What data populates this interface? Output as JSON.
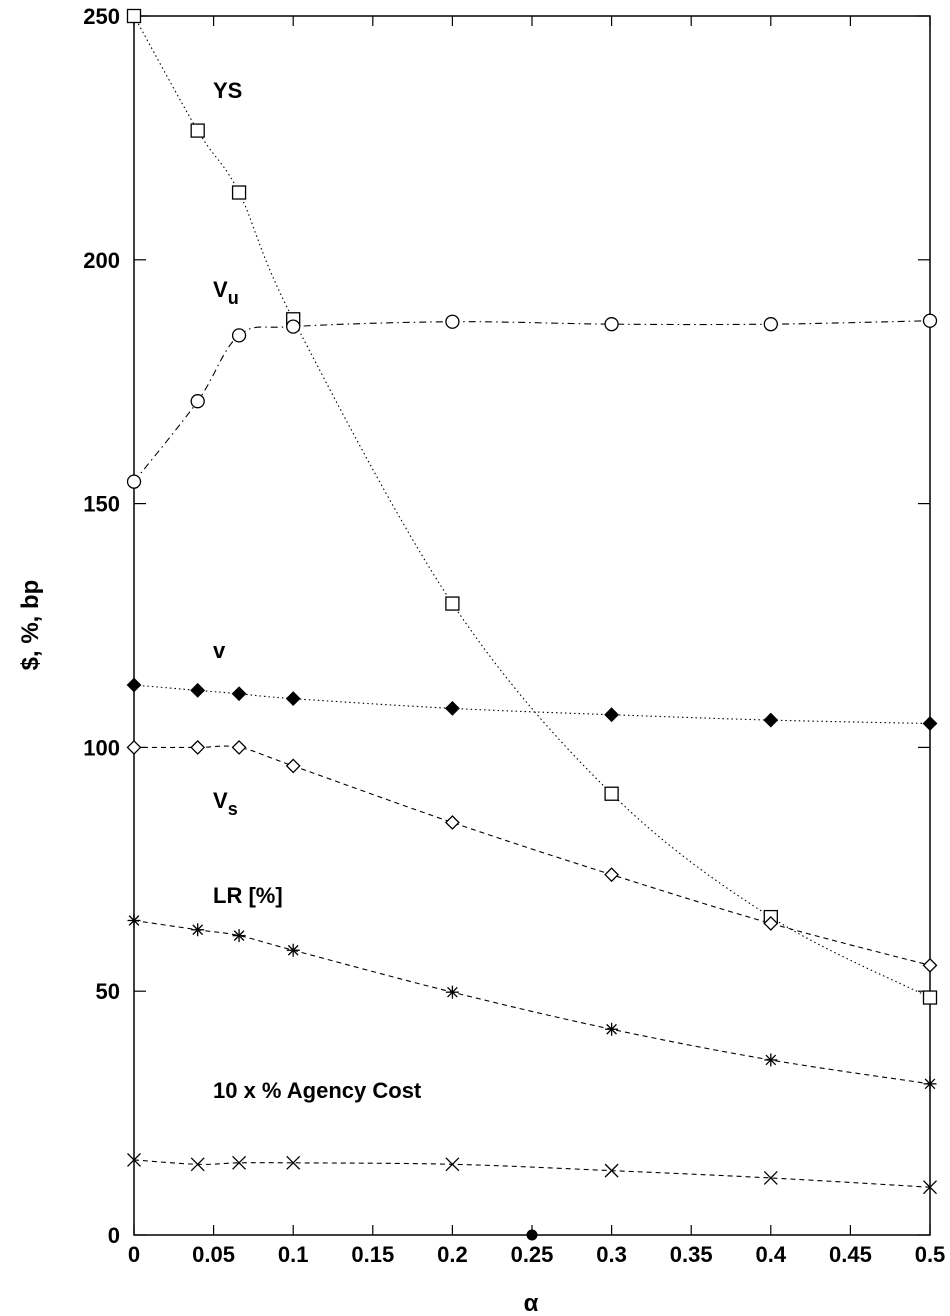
{
  "chart_data": {
    "type": "line",
    "title": "",
    "xlabel": "α",
    "ylabel": "$, %, bp",
    "xlim": [
      0,
      0.5
    ],
    "ylim": [
      0,
      250
    ],
    "x_ticks": [
      "0",
      "0.05",
      "0.1",
      "0.15",
      "0.2",
      "0.25",
      "0.3",
      "0.35",
      "0.4",
      "0.45",
      "0.5"
    ],
    "y_ticks": [
      "0",
      "50",
      "100",
      "150",
      "200",
      "250"
    ],
    "grid": false,
    "legend": "none",
    "x_axis_marker": {
      "x": 0.25,
      "y": 0
    },
    "x": [
      0,
      0.04,
      0.066,
      0.1,
      0.2,
      0.3,
      0.4,
      0.5
    ],
    "series": [
      {
        "key": "ys",
        "label_main": "YS",
        "label_sub": "",
        "marker": "square",
        "dash": "dotted",
        "values": [
          250,
          226.5,
          213.8,
          187.8,
          129.5,
          90.5,
          65.2,
          48.7
        ]
      },
      {
        "key": "vu",
        "label_main": "V",
        "label_sub": "u",
        "marker": "circle",
        "dash": "dashdot",
        "values": [
          154.5,
          171,
          184.5,
          186.3,
          187.3,
          186.8,
          186.8,
          187.5
        ]
      },
      {
        "key": "v",
        "label_main": "v",
        "label_sub": "",
        "marker": "diamond-filled",
        "dash": "dotted",
        "values": [
          112.8,
          111.7,
          111,
          110,
          108,
          106.7,
          105.6,
          104.9
        ]
      },
      {
        "key": "vs",
        "label_main": "V",
        "label_sub": "s",
        "marker": "diamond",
        "dash": "dashed",
        "values": [
          100,
          100,
          100,
          96.2,
          84.6,
          73.9,
          63.9,
          55.3
        ]
      },
      {
        "key": "lr",
        "label_main": "LR [%]",
        "label_sub": "",
        "marker": "star",
        "dash": "dashed",
        "values": [
          64.5,
          62.6,
          61.4,
          58.4,
          49.8,
          42.2,
          35.9,
          31
        ]
      },
      {
        "key": "ac",
        "label_main": "10 x % Agency Cost",
        "label_sub": "",
        "marker": "x",
        "dash": "dashed",
        "values": [
          15.4,
          14.5,
          14.8,
          14.8,
          14.5,
          13.2,
          11.7,
          9.8
        ]
      }
    ]
  }
}
